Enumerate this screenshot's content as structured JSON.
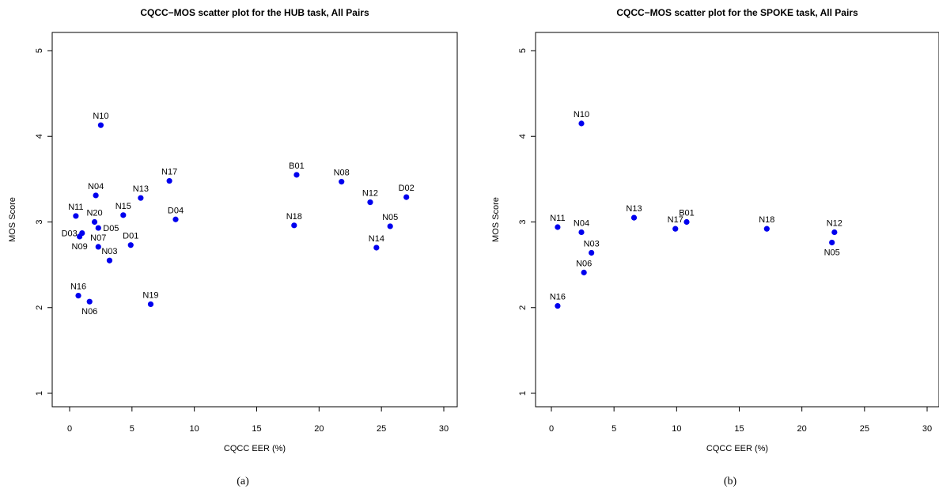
{
  "chart_data": [
    {
      "type": "scatter",
      "title": "CQCC−MOS scatter plot for the HUB task, All Pairs",
      "xlabel": "CQCC EER (%)",
      "ylabel": "MOS Score",
      "xlim": [
        0,
        30
      ],
      "ylim": [
        1,
        5
      ],
      "xticks": [
        0,
        5,
        10,
        15,
        20,
        25,
        30
      ],
      "yticks": [
        1,
        2,
        3,
        4,
        5
      ],
      "grid": false,
      "caption": "(a)",
      "points": [
        {
          "label": "N10",
          "x": 2.5,
          "y": 4.13,
          "pos": "above"
        },
        {
          "label": "N17",
          "x": 8.0,
          "y": 3.48,
          "pos": "above"
        },
        {
          "label": "B01",
          "x": 18.2,
          "y": 3.55,
          "pos": "above"
        },
        {
          "label": "N08",
          "x": 21.8,
          "y": 3.47,
          "pos": "above"
        },
        {
          "label": "D02",
          "x": 27.0,
          "y": 3.29,
          "pos": "above"
        },
        {
          "label": "N12",
          "x": 24.1,
          "y": 3.23,
          "pos": "above"
        },
        {
          "label": "N04",
          "x": 2.1,
          "y": 3.31,
          "pos": "above"
        },
        {
          "label": "N13",
          "x": 5.7,
          "y": 3.28,
          "pos": "above"
        },
        {
          "label": "N11",
          "x": 0.5,
          "y": 3.07,
          "pos": "above"
        },
        {
          "label": "N15",
          "x": 4.3,
          "y": 3.08,
          "pos": "above"
        },
        {
          "label": "D04",
          "x": 8.5,
          "y": 3.03,
          "pos": "above"
        },
        {
          "label": "N20",
          "x": 2.0,
          "y": 3.0,
          "pos": "above"
        },
        {
          "label": "D05",
          "x": 2.3,
          "y": 2.93,
          "pos": "right"
        },
        {
          "label": "N18",
          "x": 18.0,
          "y": 2.96,
          "pos": "above"
        },
        {
          "label": "N05",
          "x": 25.7,
          "y": 2.95,
          "pos": "above"
        },
        {
          "label": "D03",
          "x": 1.0,
          "y": 2.87,
          "pos": "left"
        },
        {
          "label": "N09",
          "x": 0.8,
          "y": 2.83,
          "pos": "below"
        },
        {
          "label": "N07",
          "x": 2.3,
          "y": 2.71,
          "pos": "above"
        },
        {
          "label": "D01",
          "x": 4.9,
          "y": 2.73,
          "pos": "above"
        },
        {
          "label": "N14",
          "x": 24.6,
          "y": 2.7,
          "pos": "above"
        },
        {
          "label": "N03",
          "x": 3.2,
          "y": 2.55,
          "pos": "above"
        },
        {
          "label": "N16",
          "x": 0.7,
          "y": 2.14,
          "pos": "above"
        },
        {
          "label": "N06",
          "x": 1.6,
          "y": 2.07,
          "pos": "below"
        },
        {
          "label": "N19",
          "x": 6.5,
          "y": 2.04,
          "pos": "above"
        }
      ]
    },
    {
      "type": "scatter",
      "title": "CQCC−MOS scatter plot for the SPOKE task, All Pairs",
      "xlabel": "CQCC EER (%)",
      "ylabel": "MOS Score",
      "xlim": [
        0,
        30
      ],
      "ylim": [
        1,
        5
      ],
      "xticks": [
        0,
        5,
        10,
        15,
        20,
        25,
        30
      ],
      "yticks": [
        1,
        2,
        3,
        4,
        5
      ],
      "grid": false,
      "caption": "(b)",
      "points": [
        {
          "label": "N10",
          "x": 2.4,
          "y": 4.15,
          "pos": "above"
        },
        {
          "label": "N13",
          "x": 6.6,
          "y": 3.05,
          "pos": "above"
        },
        {
          "label": "B01",
          "x": 10.8,
          "y": 3.0,
          "pos": "above"
        },
        {
          "label": "N17",
          "x": 9.9,
          "y": 2.92,
          "pos": "above"
        },
        {
          "label": "N18",
          "x": 17.2,
          "y": 2.92,
          "pos": "above"
        },
        {
          "label": "N11",
          "x": 0.5,
          "y": 2.94,
          "pos": "above"
        },
        {
          "label": "N04",
          "x": 2.4,
          "y": 2.88,
          "pos": "above"
        },
        {
          "label": "N12",
          "x": 22.6,
          "y": 2.88,
          "pos": "above"
        },
        {
          "label": "N05",
          "x": 22.4,
          "y": 2.76,
          "pos": "below"
        },
        {
          "label": "N03",
          "x": 3.2,
          "y": 2.64,
          "pos": "above"
        },
        {
          "label": "N06",
          "x": 2.6,
          "y": 2.41,
          "pos": "above"
        },
        {
          "label": "N16",
          "x": 0.5,
          "y": 2.02,
          "pos": "above"
        }
      ]
    }
  ]
}
